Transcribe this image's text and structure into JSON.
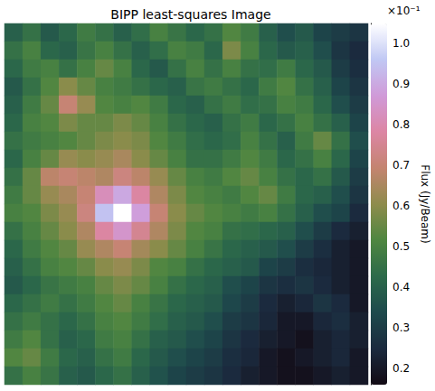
{
  "chart_data": {
    "type": "heatmap",
    "title": "BIPP least-squares Image",
    "tick_labels": false,
    "cells": [
      [
        0.4,
        0.45,
        0.38,
        0.42,
        0.48,
        0.45,
        0.4,
        0.44,
        0.5,
        0.46,
        0.42,
        0.45,
        0.52,
        0.48,
        0.4,
        0.35,
        0.38,
        0.32,
        0.3,
        0.28
      ],
      [
        0.45,
        0.5,
        0.42,
        0.4,
        0.46,
        0.5,
        0.45,
        0.4,
        0.44,
        0.5,
        0.48,
        0.42,
        0.58,
        0.5,
        0.42,
        0.38,
        0.4,
        0.35,
        0.28,
        0.25
      ],
      [
        0.42,
        0.48,
        0.5,
        0.45,
        0.5,
        0.55,
        0.5,
        0.42,
        0.38,
        0.45,
        0.5,
        0.45,
        0.5,
        0.45,
        0.44,
        0.48,
        0.42,
        0.38,
        0.3,
        0.26
      ],
      [
        0.38,
        0.45,
        0.52,
        0.6,
        0.55,
        0.5,
        0.48,
        0.45,
        0.42,
        0.4,
        0.46,
        0.48,
        0.45,
        0.42,
        0.48,
        0.52,
        0.45,
        0.4,
        0.32,
        0.28
      ],
      [
        0.4,
        0.48,
        0.55,
        0.7,
        0.62,
        0.52,
        0.5,
        0.52,
        0.48,
        0.42,
        0.4,
        0.45,
        0.48,
        0.44,
        0.45,
        0.5,
        0.48,
        0.42,
        0.35,
        0.3
      ],
      [
        0.42,
        0.5,
        0.52,
        0.58,
        0.55,
        0.55,
        0.58,
        0.55,
        0.5,
        0.45,
        0.42,
        0.4,
        0.45,
        0.48,
        0.42,
        0.45,
        0.5,
        0.45,
        0.4,
        0.32
      ],
      [
        0.45,
        0.48,
        0.5,
        0.52,
        0.55,
        0.58,
        0.6,
        0.58,
        0.52,
        0.48,
        0.44,
        0.42,
        0.44,
        0.5,
        0.45,
        0.4,
        0.48,
        0.55,
        0.45,
        0.35
      ],
      [
        0.42,
        0.5,
        0.55,
        0.62,
        0.6,
        0.62,
        0.65,
        0.6,
        0.55,
        0.5,
        0.45,
        0.45,
        0.48,
        0.52,
        0.48,
        0.42,
        0.45,
        0.5,
        0.42,
        0.32
      ],
      [
        0.45,
        0.55,
        0.68,
        0.7,
        0.68,
        0.66,
        0.72,
        0.68,
        0.62,
        0.55,
        0.5,
        0.48,
        0.52,
        0.55,
        0.5,
        0.45,
        0.42,
        0.45,
        0.38,
        0.3
      ],
      [
        0.48,
        0.55,
        0.62,
        0.65,
        0.7,
        0.82,
        0.9,
        0.78,
        0.66,
        0.58,
        0.52,
        0.5,
        0.48,
        0.52,
        0.55,
        0.48,
        0.42,
        0.4,
        0.35,
        0.28
      ],
      [
        0.5,
        0.52,
        0.58,
        0.62,
        0.72,
        0.95,
        1.05,
        0.88,
        0.7,
        0.6,
        0.55,
        0.52,
        0.5,
        0.48,
        0.5,
        0.45,
        0.4,
        0.35,
        0.32,
        0.25
      ],
      [
        0.45,
        0.5,
        0.55,
        0.6,
        0.66,
        0.78,
        0.85,
        0.75,
        0.66,
        0.58,
        0.52,
        0.5,
        0.45,
        0.44,
        0.42,
        0.4,
        0.35,
        0.3,
        0.25,
        0.22
      ],
      [
        0.42,
        0.48,
        0.52,
        0.55,
        0.62,
        0.66,
        0.7,
        0.64,
        0.6,
        0.55,
        0.5,
        0.46,
        0.42,
        0.4,
        0.38,
        0.35,
        0.3,
        0.26,
        0.22,
        0.2
      ],
      [
        0.4,
        0.45,
        0.5,
        0.52,
        0.55,
        0.6,
        0.62,
        0.58,
        0.52,
        0.5,
        0.45,
        0.42,
        0.4,
        0.38,
        0.32,
        0.3,
        0.26,
        0.24,
        0.22,
        0.2
      ],
      [
        0.38,
        0.42,
        0.46,
        0.48,
        0.5,
        0.55,
        0.58,
        0.55,
        0.5,
        0.45,
        0.42,
        0.4,
        0.35,
        0.32,
        0.28,
        0.26,
        0.28,
        0.25,
        0.22,
        0.2
      ],
      [
        0.42,
        0.45,
        0.48,
        0.45,
        0.48,
        0.52,
        0.55,
        0.5,
        0.46,
        0.42,
        0.4,
        0.38,
        0.33,
        0.3,
        0.25,
        0.22,
        0.24,
        0.28,
        0.25,
        0.2
      ],
      [
        0.45,
        0.48,
        0.45,
        0.42,
        0.45,
        0.5,
        0.52,
        0.48,
        0.44,
        0.4,
        0.38,
        0.35,
        0.3,
        0.28,
        0.24,
        0.2,
        0.2,
        0.24,
        0.26,
        0.22
      ],
      [
        0.48,
        0.52,
        0.45,
        0.4,
        0.42,
        0.48,
        0.5,
        0.45,
        0.4,
        0.38,
        0.35,
        0.32,
        0.28,
        0.25,
        0.22,
        0.2,
        0.18,
        0.22,
        0.24,
        0.22
      ],
      [
        0.52,
        0.55,
        0.48,
        0.42,
        0.4,
        0.45,
        0.48,
        0.42,
        0.38,
        0.35,
        0.32,
        0.3,
        0.26,
        0.24,
        0.2,
        0.18,
        0.2,
        0.22,
        0.24,
        0.2
      ],
      [
        0.45,
        0.5,
        0.46,
        0.4,
        0.38,
        0.42,
        0.45,
        0.4,
        0.36,
        0.32,
        0.3,
        0.28,
        0.25,
        0.22,
        0.2,
        0.18,
        0.18,
        0.2,
        0.22,
        0.2
      ]
    ],
    "colorbar": {
      "label": "Flux (Jy/Beam)",
      "range": [
        0.16,
        1.05
      ],
      "offset_label": "×10⁻¹",
      "ticks": [
        0.2,
        0.3,
        0.4,
        0.5,
        0.6,
        0.7,
        0.8,
        0.9,
        {
          "value": 1,
          "label": "1.0"
        }
      ]
    }
  }
}
